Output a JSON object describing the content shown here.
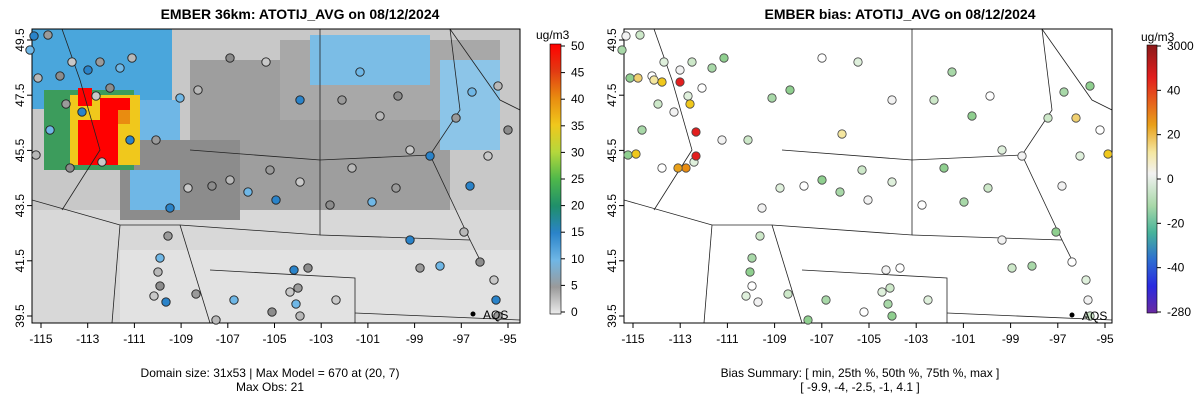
{
  "left": {
    "title": "EMBER 36km: ATOTIJ_AVG on 08/12/2024",
    "units": "ug/m3",
    "footer_line1": "Domain size: 31x53 | Max Model = 670 at (20, 7)",
    "footer_line2": "Max Obs: 21",
    "colorbar_ticks": [
      "0",
      "5",
      "10",
      "15",
      "20",
      "25",
      "30",
      "35",
      "40",
      "45",
      "50"
    ]
  },
  "right": {
    "title": "EMBER bias: ATOTIJ_AVG on 08/12/2024",
    "units": "ug/m3",
    "footer_line1": "Bias Summary: [ min, 25th %, 50th %, 75th %, max ]",
    "footer_line2": "[ -9.9,   -4,   -2.5,   -1,   4.1 ]",
    "colorbar_ticks": [
      "3000",
      "40",
      "20",
      "0",
      "-20",
      "-40",
      "-280"
    ]
  },
  "map": {
    "x_ticks": [
      "-115",
      "-113",
      "-111",
      "-109",
      "-107",
      "-105",
      "-103",
      "-101",
      "-99",
      "-97",
      "-95"
    ],
    "y_ticks": [
      "39.5",
      "41.5",
      "43.5",
      "45.5",
      "47.5",
      "49.5"
    ],
    "site_label": "AQS"
  },
  "colors": {
    "bias_cbar_top": "#8b1a1a",
    "bias_cbar_bottom": "#6a2aa0",
    "conc_high": "#ff0000",
    "conc_low": "#e8e8e8"
  }
}
